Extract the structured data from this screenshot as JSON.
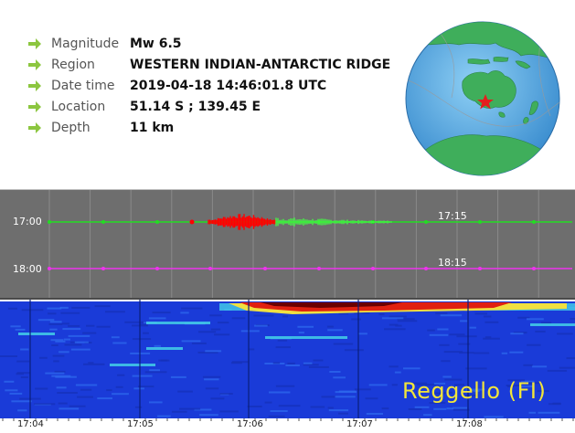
{
  "event": {
    "fields": [
      {
        "label": "Magnitude",
        "value": "Mw 6.5"
      },
      {
        "label": "Region",
        "value": "WESTERN INDIAN-ANTARCTIC RIDGE"
      },
      {
        "label": "Date time",
        "value": "2019-04-18 14:46:01.8 UTC"
      },
      {
        "label": "Location",
        "value": "51.14 S ; 139.45 E"
      },
      {
        "label": "Depth",
        "value": "11 km"
      }
    ],
    "bullet_icon": "green-arrow-icon",
    "bullet_color": "#8cc63f"
  },
  "globe": {
    "icon": "globe-icon",
    "marker_icon": "epicenter-star-icon",
    "ocean_color": "#5fa8e0",
    "land_color": "#3fae5b",
    "marker_color": "#e41e1e"
  },
  "seismogram": {
    "hour_labels": [
      "17:00",
      "18:00"
    ],
    "mark_labels": [
      "17:15",
      "18:15"
    ],
    "trace_colors": [
      "#22dd22",
      "#ee33ee"
    ],
    "event_color": "#ff0000",
    "background": "#6e6e6e"
  },
  "spectrogram": {
    "station": "Reggello (FI)",
    "colormap": [
      "#1a3bd8",
      "#2f6cf0",
      "#44d0e8",
      "#f0e040",
      "#e02010",
      "#6a0000"
    ]
  },
  "time_axis": {
    "labels": [
      "17:04",
      "17:05",
      "17:06",
      "17:07",
      "17:08"
    ]
  }
}
